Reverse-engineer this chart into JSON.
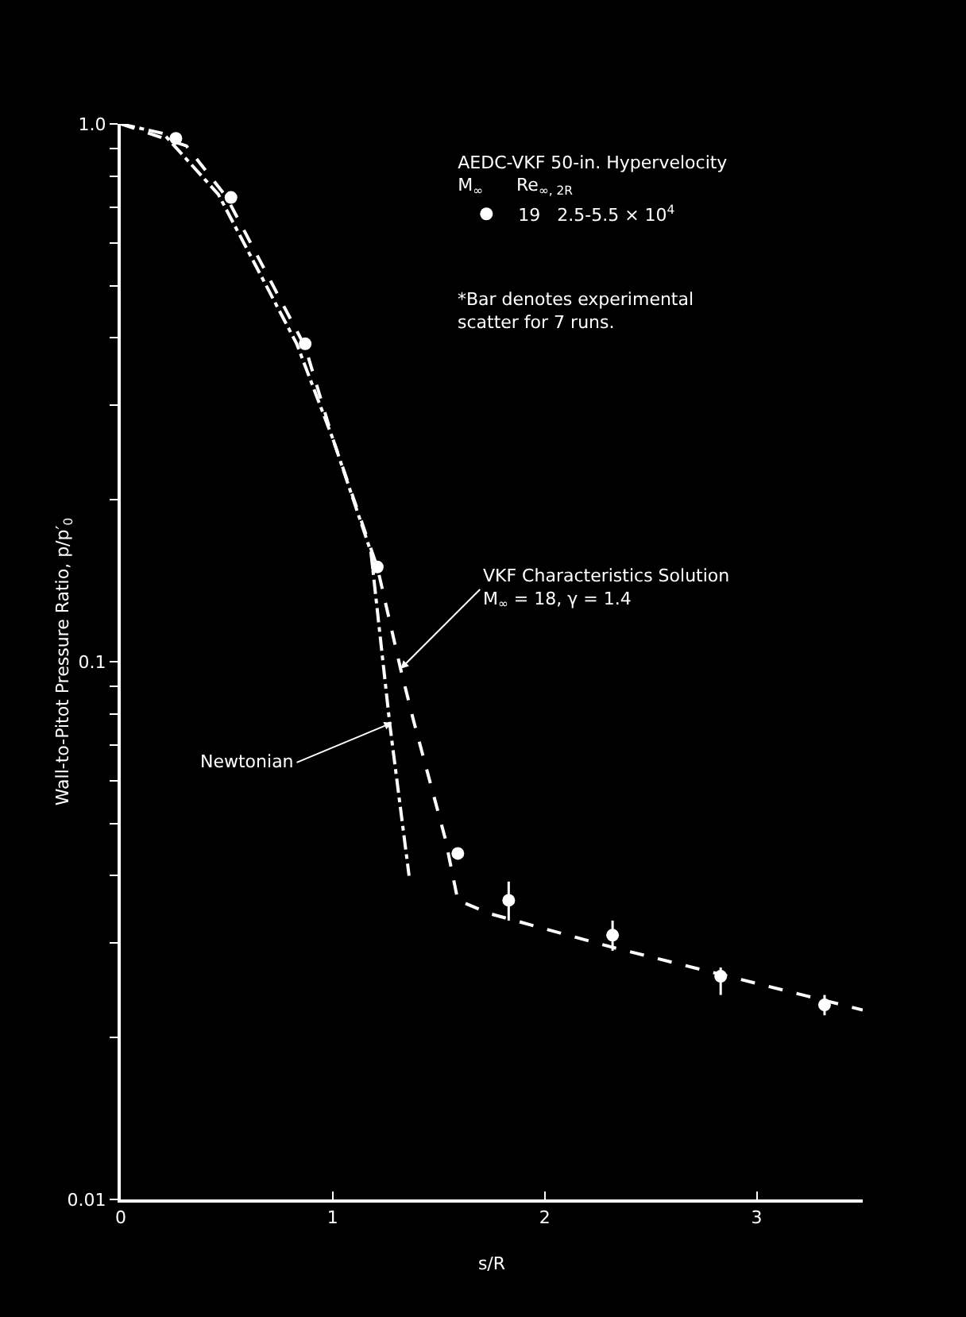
{
  "chart_data": {
    "type": "scatter",
    "xlabel": "s/R",
    "ylabel": "Wall-to-Pitot Pressure Ratio, p/p′$_{0}$",
    "legend_title": "AEDC-VKF 50-in. Hypervelocity\nM$_{∞}$      Re$_{∞, 2R}$",
    "xlim": [
      0,
      3.5
    ],
    "xticks": [
      0,
      1,
      2,
      3
    ],
    "ylim": [
      0.01,
      1
    ],
    "log": true,
    "yticks": [
      {
        "value": 0.01,
        "label": "0.01"
      },
      {
        "value": 0.02,
        "label": null
      },
      {
        "value": 0.03,
        "label": null
      },
      {
        "value": 0.04,
        "label": null
      },
      {
        "value": 0.05,
        "label": null
      },
      {
        "value": 0.06,
        "label": null
      },
      {
        "value": 0.07,
        "label": null
      },
      {
        "value": 0.08,
        "label": null
      },
      {
        "value": 0.09,
        "label": null
      },
      {
        "value": 0.1,
        "label": "0.1"
      },
      {
        "value": 0.2,
        "label": null
      },
      {
        "value": 0.3,
        "label": null
      },
      {
        "value": 0.4,
        "label": null
      },
      {
        "value": 0.5,
        "label": null
      },
      {
        "value": 0.6,
        "label": null
      },
      {
        "value": 0.7,
        "label": null
      },
      {
        "value": 0.8,
        "label": null
      },
      {
        "value": 0.9,
        "label": null
      },
      {
        "value": 1,
        "label": "1.0"
      }
    ],
    "grid": false,
    "legend": "top right",
    "marker": "circle",
    "series": [
      {
        "name": "19   2.5-5.5 × 10$^{4}$",
        "color": "#ffffff",
        "x": [
          0.26,
          0.52,
          0.87,
          1.21,
          1.59,
          1.83,
          2.32,
          2.83,
          3.32
        ],
        "values": [
          0.94,
          0.73,
          0.39,
          0.15,
          0.044,
          0.036,
          0.031,
          0.026,
          0.023
        ],
        "errors": [
          null,
          null,
          null,
          null,
          null,
          [
            0.033,
            0.039
          ],
          [
            0.029,
            0.033
          ],
          [
            0.024,
            0.027
          ],
          [
            0.022,
            0.024
          ]
        ]
      },
      {
        "type": "line",
        "color": "#ffffff",
        "line_style": "dashed",
        "marker": "none",
        "x": [
          0,
          0.31,
          0.5,
          0.87,
          1.0,
          1.21,
          1.32,
          1.38,
          1.53,
          1.59,
          1.74,
          2.31,
          3.5
        ],
        "values": [
          1,
          0.91,
          0.73,
          0.385,
          0.26,
          0.15,
          0.097,
          0.078,
          0.047,
          0.036,
          0.034,
          0.0295,
          0.0225
        ]
      },
      {
        "type": "line",
        "color": "#ffffff",
        "line_style": "dashdot",
        "marker": "none",
        "x": [
          0,
          0.2,
          0.46,
          0.83,
          1.0,
          1.18,
          1.27,
          1.36
        ],
        "values": [
          1,
          0.96,
          0.74,
          0.39,
          0.26,
          0.16,
          0.076,
          0.04
        ]
      }
    ],
    "annotations": [
      "*Bar denotes experimental\nscatter for 7 runs.",
      {
        "text": "VKF Characteristics Solution\nM$_{∞}$ = 18, γ = 1.4",
        "x": 1.32,
        "y": 0.097
      },
      {
        "text": "Newtonian",
        "x": 1.28,
        "y": 0.077
      }
    ]
  }
}
